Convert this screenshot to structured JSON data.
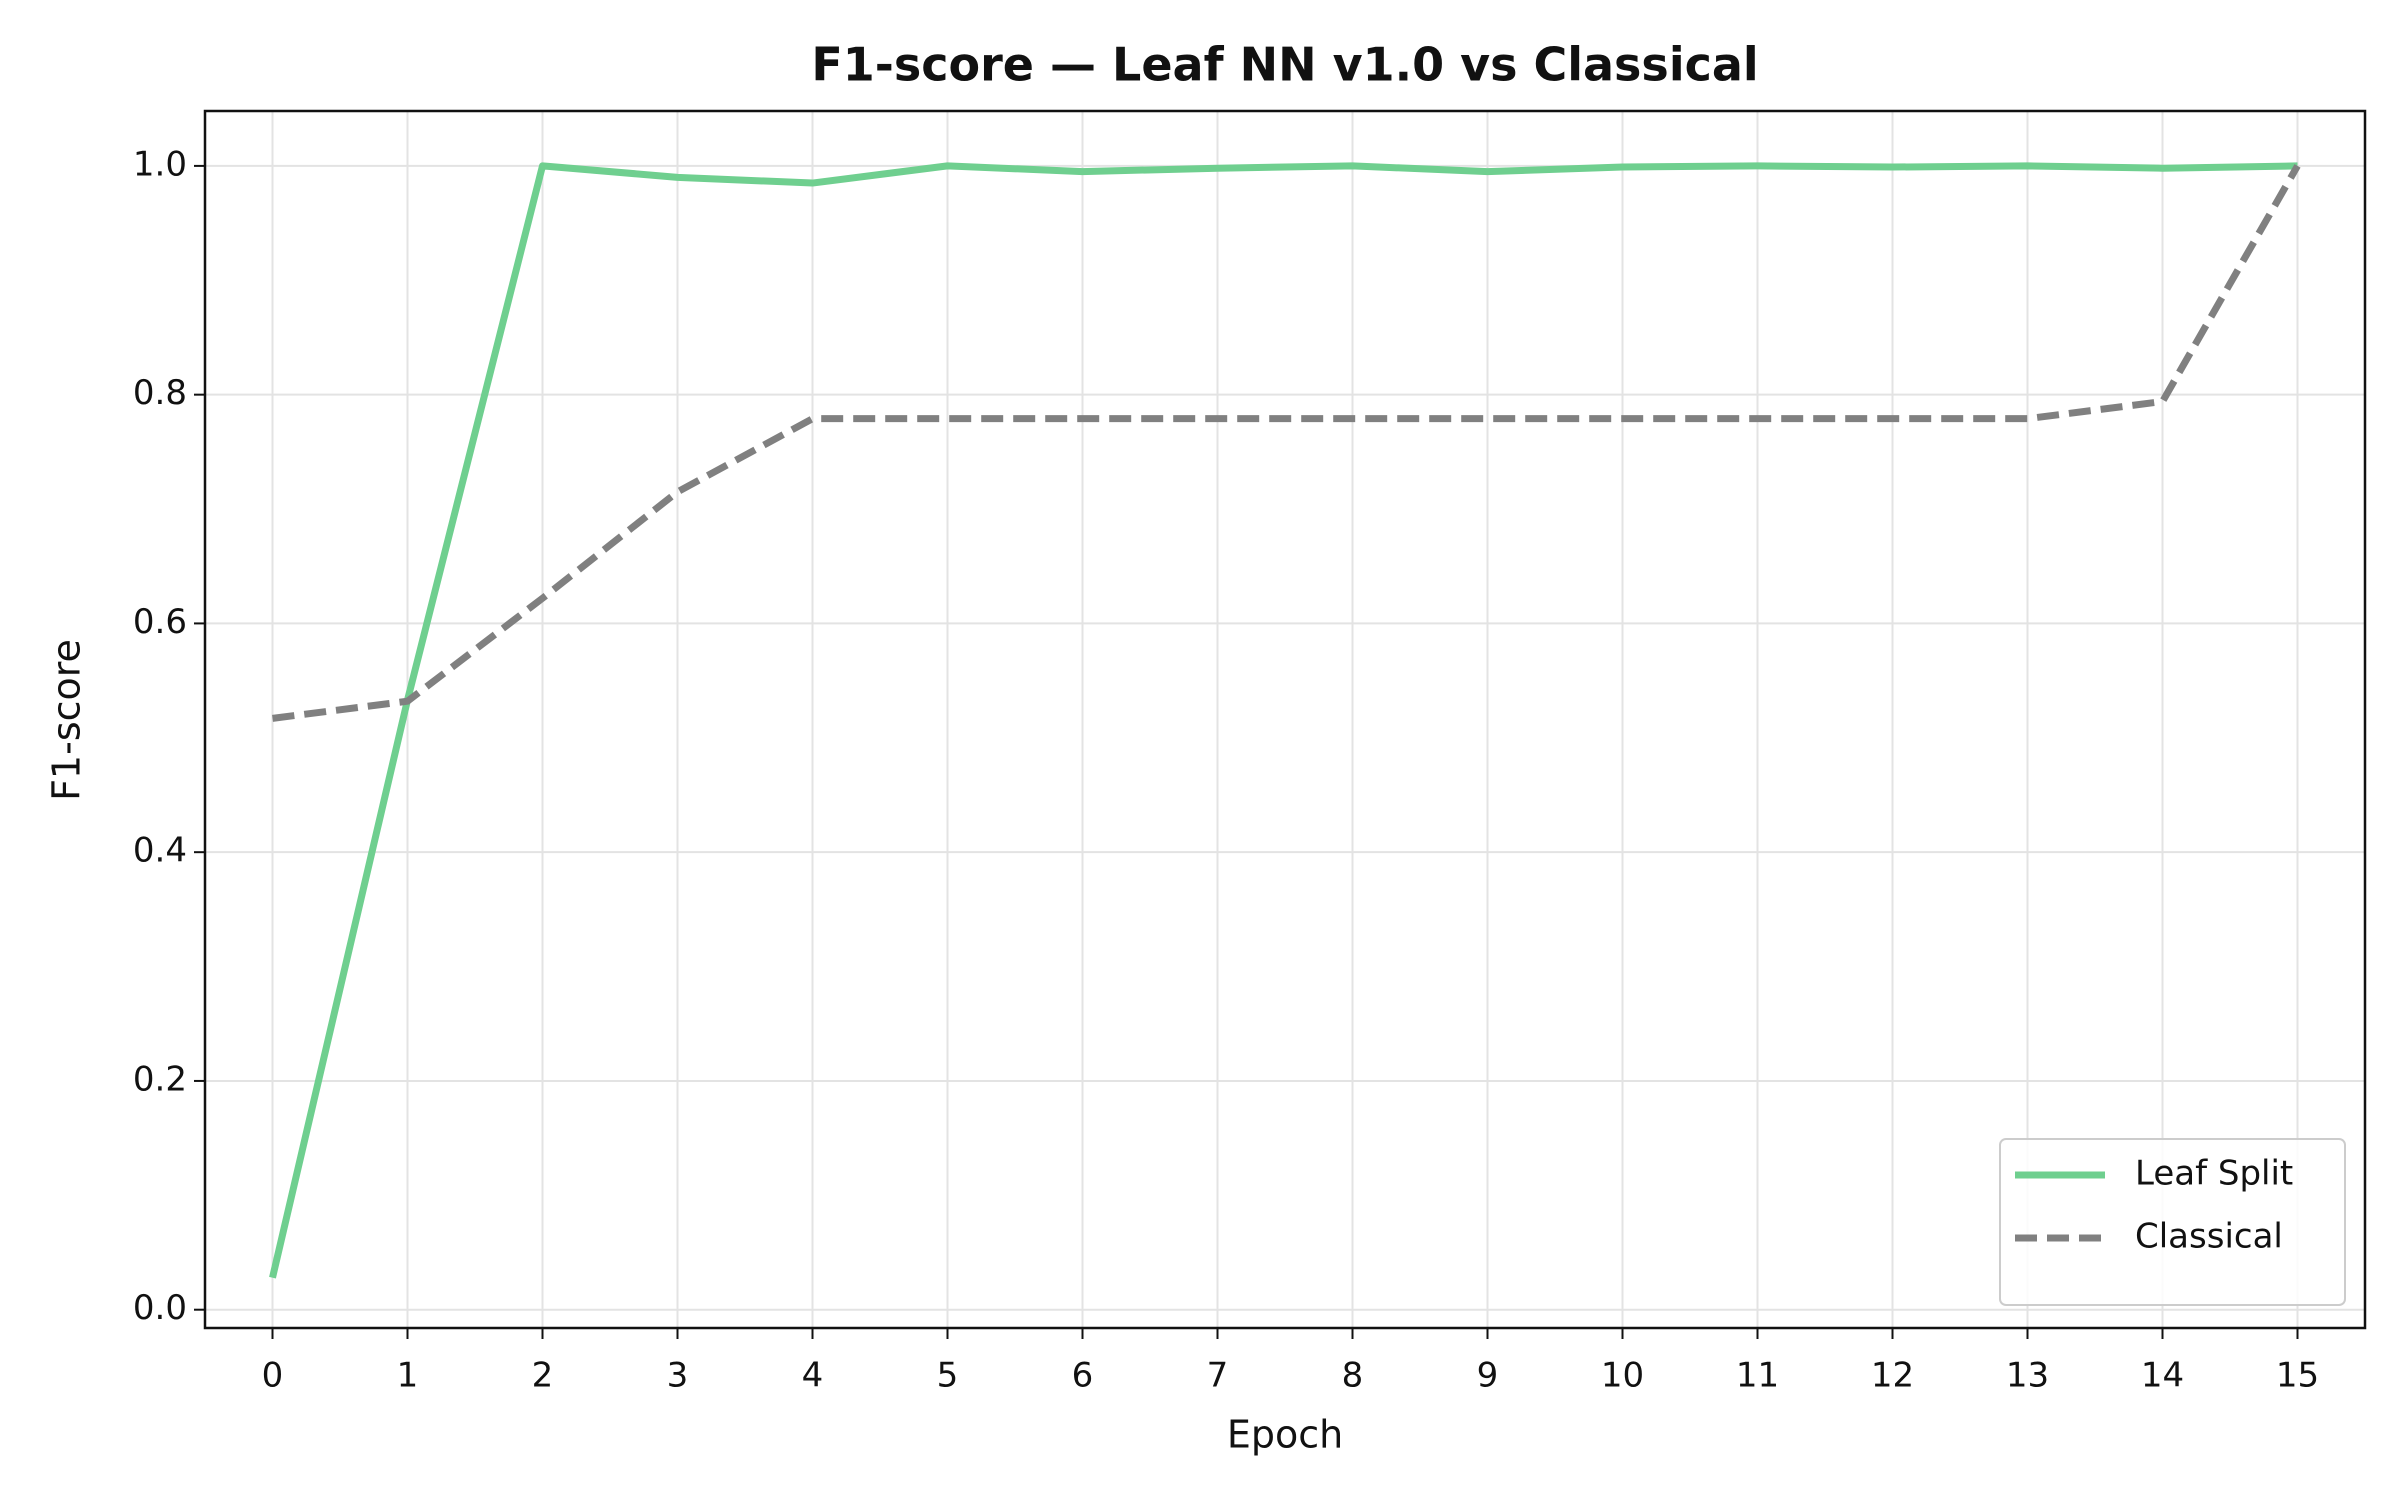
{
  "chart_data": {
    "type": "line",
    "title": "F1-score — Leaf NN v1.0 vs Classical",
    "x_label": "Epoch",
    "y_label": "F1-score",
    "x": [
      0,
      1,
      2,
      3,
      4,
      5,
      6,
      7,
      8,
      9,
      10,
      11,
      12,
      13,
      14,
      15
    ],
    "series": [
      {
        "name": "Leaf Split",
        "color": "#6fcf8f",
        "linestyle": "solid",
        "values": [
          0.028,
          0.533,
          1.0,
          0.99,
          0.985,
          1.0,
          0.995,
          0.998,
          1.0,
          0.995,
          0.999,
          1.0,
          0.999,
          1.0,
          0.998,
          1.0
        ]
      },
      {
        "name": "Classical",
        "color": "#808080",
        "linestyle": "dashed",
        "values": [
          0.517,
          0.532,
          0.622,
          0.715,
          0.779,
          0.779,
          0.779,
          0.779,
          0.779,
          0.779,
          0.779,
          0.779,
          0.779,
          0.779,
          0.794,
          1.0
        ]
      }
    ],
    "xlim": [
      -0.5,
      15.5
    ],
    "ylim": [
      -0.016,
      1.048
    ],
    "xticks": [
      0,
      1,
      2,
      3,
      4,
      5,
      6,
      7,
      8,
      9,
      10,
      11,
      12,
      13,
      14,
      15
    ],
    "yticks": [
      {
        "value": 0,
        "label": "0.0"
      },
      0.2,
      0.4,
      0.6,
      0.8,
      {
        "value": 1,
        "label": "1.0"
      }
    ],
    "grid": true,
    "legend": "lower right"
  }
}
